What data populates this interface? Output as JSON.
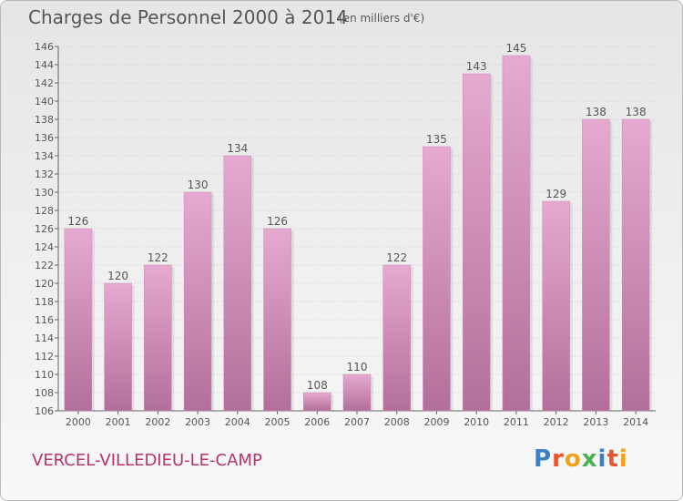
{
  "header": {
    "title": "Charges de Personnel 2000 à 2014",
    "subtitle": "(en milliers d'€)"
  },
  "footer": {
    "town": "VERCEL-VILLEDIEU-LE-CAMP",
    "logo": "Proxiti"
  },
  "colors": {
    "bar_top": "#e6a9d0",
    "bar_bottom": "#b36f9b",
    "text": "#555555",
    "town": "#b5336e",
    "logo_letters": [
      "#3b7fc4",
      "#e5552e",
      "#f0a21b",
      "#4caf50",
      "#3b7fc4",
      "#e5552e",
      "#f0a21b"
    ]
  },
  "chart_data": {
    "type": "bar",
    "title": "Charges de Personnel 2000 à 2014",
    "subtitle": "(en milliers d'€)",
    "categories": [
      "2000",
      "2001",
      "2002",
      "2003",
      "2004",
      "2005",
      "2006",
      "2007",
      "2008",
      "2009",
      "2010",
      "2011",
      "2012",
      "2013",
      "2014"
    ],
    "values": [
      126,
      120,
      122,
      130,
      134,
      126,
      108,
      110,
      122,
      135,
      143,
      145,
      129,
      138,
      138
    ],
    "ylim": [
      106,
      146
    ],
    "yticks": [
      106,
      108,
      110,
      112,
      114,
      116,
      118,
      120,
      122,
      124,
      126,
      128,
      130,
      132,
      134,
      136,
      138,
      140,
      142,
      144,
      146
    ],
    "grid": true
  }
}
